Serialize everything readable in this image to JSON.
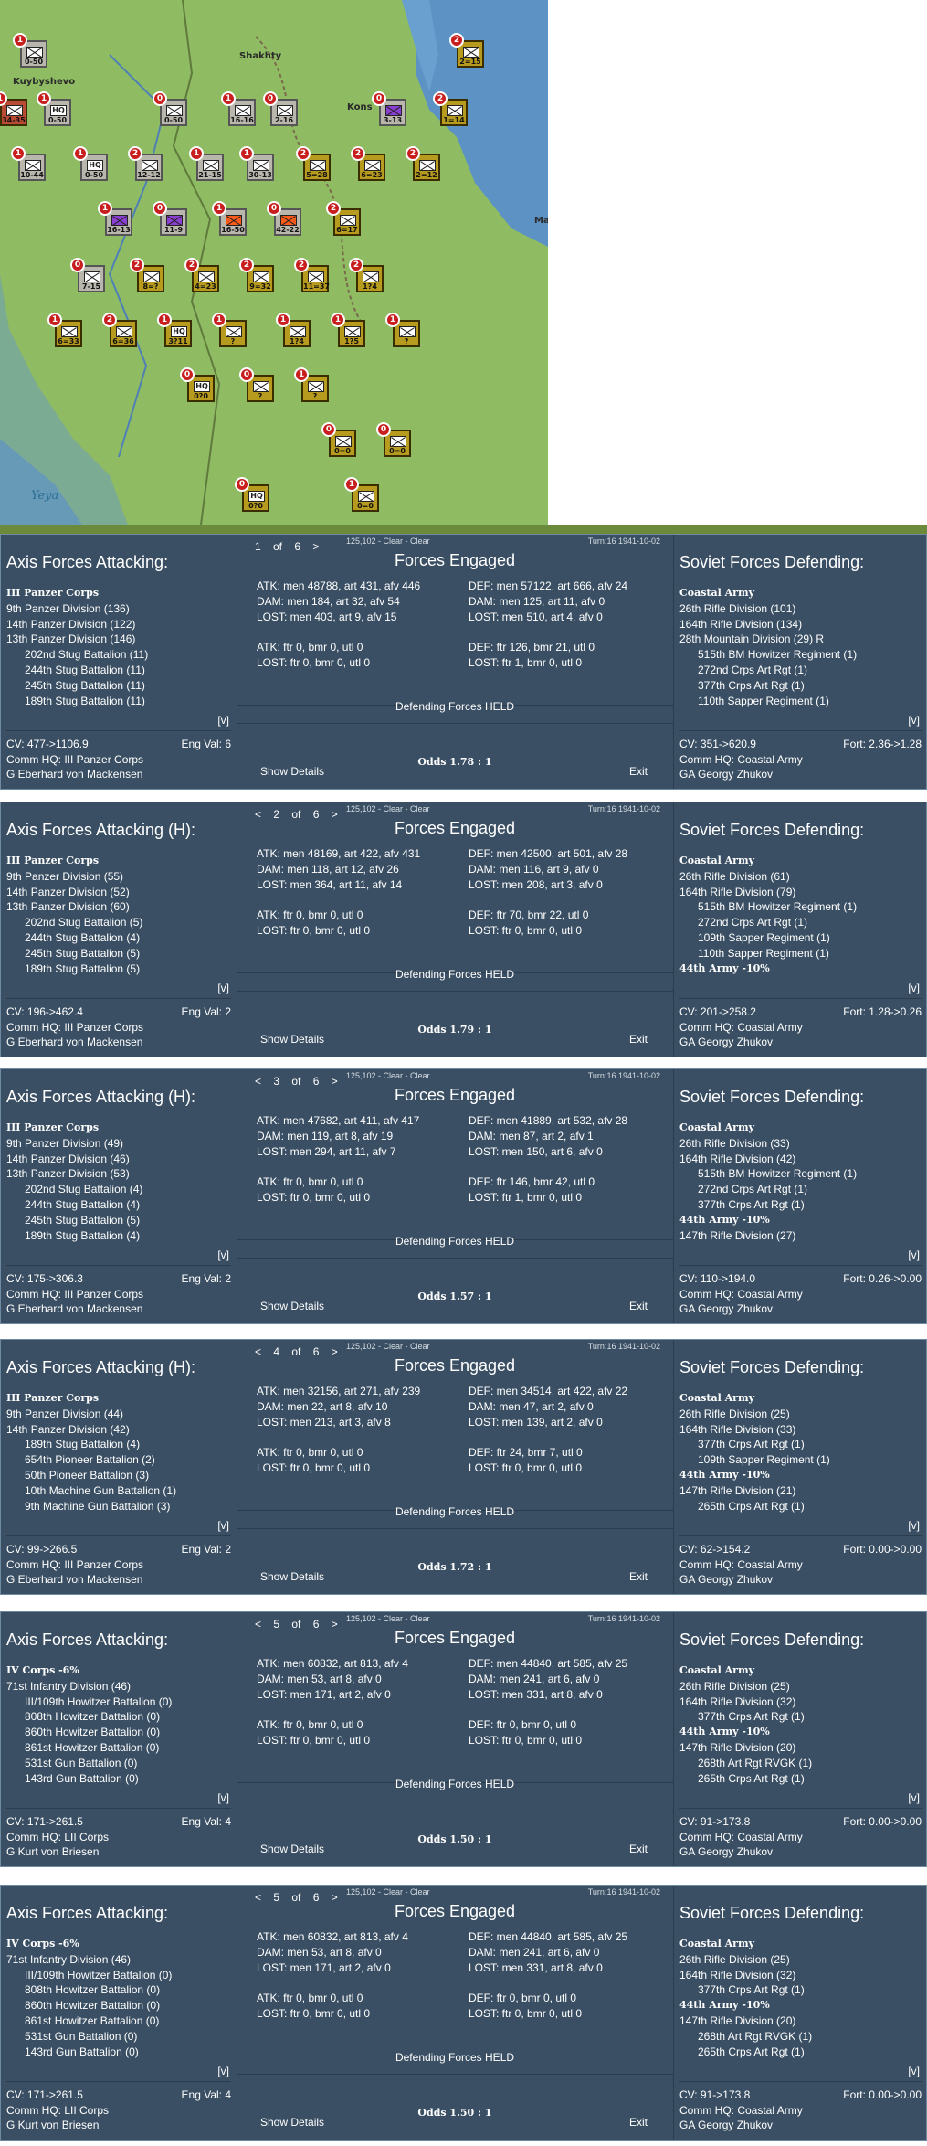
{
  "map": {
    "towns": [
      "Shakhty",
      "Kuybyshevo",
      "Kons",
      "Ma"
    ],
    "sea_label": "Yeya",
    "units": [
      {
        "label": "0-50",
        "style": "grey",
        "sym": "x"
      },
      {
        "label": "34-35",
        "style": "red",
        "sym": "x"
      },
      {
        "label": "0-50",
        "style": "grey",
        "sym": "hq"
      },
      {
        "label": "0-50",
        "style": "grey",
        "sym": "x"
      },
      {
        "label": "16-16",
        "style": "grey",
        "sym": "x"
      },
      {
        "label": "2-16",
        "style": "grey",
        "sym": "x"
      },
      {
        "label": "3-13",
        "style": "grey",
        "sym": "purple"
      },
      {
        "label": "1=14",
        "style": "gold",
        "sym": "x"
      },
      {
        "label": "2=15",
        "style": "gold",
        "sym": "x"
      },
      {
        "label": "10-44",
        "style": "grey",
        "sym": "x"
      },
      {
        "label": "0-50",
        "style": "grey",
        "sym": "hq"
      },
      {
        "label": "12-12",
        "style": "grey",
        "sym": "x"
      },
      {
        "label": "21-15",
        "style": "grey",
        "sym": "x"
      },
      {
        "label": "30-13",
        "style": "grey",
        "sym": "x"
      },
      {
        "label": "5=28",
        "style": "gold",
        "sym": "x"
      },
      {
        "label": "6=23",
        "style": "gold",
        "sym": "x"
      },
      {
        "label": "2=12",
        "style": "gold",
        "sym": "x"
      },
      {
        "label": "16-13",
        "style": "grey",
        "sym": "purple"
      },
      {
        "label": "11-9",
        "style": "grey",
        "sym": "purple"
      },
      {
        "label": "16-50",
        "style": "grey",
        "sym": "orange"
      },
      {
        "label": "42-22",
        "style": "grey",
        "sym": "orange"
      },
      {
        "label": "6=17",
        "style": "gold",
        "sym": "x"
      },
      {
        "label": "7-15",
        "style": "grey",
        "sym": "x"
      },
      {
        "label": "8=?",
        "style": "gold",
        "sym": "x"
      },
      {
        "label": "4=23",
        "style": "gold",
        "sym": "x"
      },
      {
        "label": "9=32",
        "style": "gold",
        "sym": "x"
      },
      {
        "label": "11=37",
        "style": "gold",
        "sym": "x"
      },
      {
        "label": "1?4",
        "style": "gold",
        "sym": "x"
      },
      {
        "label": "6=33",
        "style": "gold",
        "sym": "x"
      },
      {
        "label": "6=36",
        "style": "gold",
        "sym": "x"
      },
      {
        "label": "3?11",
        "style": "gold",
        "sym": "hq"
      },
      {
        "label": "?",
        "style": "gold",
        "sym": "x"
      },
      {
        "label": "1?4",
        "style": "gold",
        "sym": "x"
      },
      {
        "label": "1?5",
        "style": "gold",
        "sym": "x"
      },
      {
        "label": "?",
        "style": "gold",
        "sym": "x"
      },
      {
        "label": "0?0",
        "style": "gold",
        "sym": "hq"
      },
      {
        "label": "?",
        "style": "gold",
        "sym": "x"
      },
      {
        "label": "?",
        "style": "gold",
        "sym": "x"
      },
      {
        "label": "0=0",
        "style": "gold",
        "sym": "x"
      },
      {
        "label": "0=0",
        "style": "gold",
        "sym": "x"
      },
      {
        "label": "0?0",
        "style": "gold",
        "sym": "hq"
      },
      {
        "label": "0=0",
        "style": "gold",
        "sym": "x"
      }
    ]
  },
  "panels": [
    {
      "nav": "1 of 6 >",
      "meta": "125,102 - Clear - Clear",
      "turn": "Turn:16  1941-10-02",
      "title": "Forces Engaged",
      "attack_header": "Axis Forces Attacking:",
      "attack_lines": [
        {
          "t": "III Panzer Corps",
          "c": "corps"
        },
        {
          "t": "9th Panzer Division (136)",
          "c": ""
        },
        {
          "t": "14th Panzer Division (122)",
          "c": ""
        },
        {
          "t": "13th Panzer Division (146)",
          "c": ""
        },
        {
          "t": "202nd Stug Battalion (11)",
          "c": "ind"
        },
        {
          "t": "244th Stug Battalion (11)",
          "c": "ind"
        },
        {
          "t": "245th Stug Battalion (11)",
          "c": "ind"
        },
        {
          "t": "189th Stug Battalion (11)",
          "c": "ind"
        }
      ],
      "atk": [
        "ATK: men 48788, art 431, afv 446",
        "DAM: men 184, art 32, afv 54",
        "LOST: men 403, art 9, afv 15",
        "",
        "ATK: ftr 0, bmr 0, utl 0",
        "LOST: ftr 0, bmr 0, utl 0"
      ],
      "def": [
        "DEF: men 57122, art 666, afv 24",
        "DAM: men 125, art 11, afv 0",
        "LOST: men 510, art 4, afv 0",
        "",
        "DEF: ftr 126, bmr 21, utl 0",
        "LOST: ftr 1, bmr 0, utl 0"
      ],
      "result": "Defending Forces HELD",
      "odds": "Odds 1.78 : 1",
      "show_details": "Show Details",
      "exit": "Exit",
      "atk_cv": "CV: 477->1106.9",
      "atk_eng": "Eng Val: 6",
      "atk_hq": "Comm HQ: III Panzer Corps",
      "atk_cmdr": "G Eberhard von Mackensen",
      "defend_header": "Soviet Forces Defending:",
      "defend_lines": [
        {
          "t": "Coastal Army",
          "c": "corps"
        },
        {
          "t": "26th Rifle Division (101)",
          "c": ""
        },
        {
          "t": "164th Rifle Division (134)",
          "c": ""
        },
        {
          "t": "28th Mountain Division (29) R",
          "c": ""
        },
        {
          "t": "515th BM Howitzer Regiment (1)",
          "c": "ind"
        },
        {
          "t": "272nd Crps Art Rgt (1)",
          "c": "ind"
        },
        {
          "t": "377th Crps Art Rgt (1)",
          "c": "ind"
        },
        {
          "t": "110th Sapper Regiment (1)",
          "c": "ind"
        }
      ],
      "def_cv": "CV: 351->620.9",
      "def_fort": "Fort: 2.36->1.28",
      "def_hq": "Comm HQ: Coastal Army",
      "def_cmdr": "GA Georgy Zhukov",
      "vlink": "[v]"
    },
    {
      "nav": "< 2 of 6 >",
      "meta": "125,102 - Clear - Clear",
      "turn": "Turn:16  1941-10-02",
      "title": "Forces Engaged",
      "attack_header": "Axis Forces Attacking (H):",
      "attack_lines": [
        {
          "t": "III Panzer Corps",
          "c": "corps"
        },
        {
          "t": "9th Panzer Division (55)",
          "c": ""
        },
        {
          "t": "14th Panzer Division (52)",
          "c": ""
        },
        {
          "t": "13th Panzer Division (60)",
          "c": ""
        },
        {
          "t": "202nd Stug Battalion (5)",
          "c": "ind"
        },
        {
          "t": "244th Stug Battalion (4)",
          "c": "ind"
        },
        {
          "t": "245th Stug Battalion (5)",
          "c": "ind"
        },
        {
          "t": "189th Stug Battalion (5)",
          "c": "ind"
        }
      ],
      "atk": [
        "ATK: men 48169, art 422, afv 431",
        "DAM: men 118, art 12, afv 26",
        "LOST: men 364, art 11, afv 14",
        "",
        "ATK: ftr 0, bmr 0, utl 0",
        "LOST: ftr 0, bmr 0, utl 0"
      ],
      "def": [
        "DEF: men 42500, art 501, afv 28",
        "DAM: men 116, art 9, afv 0",
        "LOST: men 208, art 3, afv 0",
        "",
        "DEF: ftr 70, bmr 22, utl 0",
        "LOST: ftr 0, bmr 0, utl 0"
      ],
      "result": "Defending Forces HELD",
      "odds": "Odds 1.79 : 1",
      "show_details": "Show Details",
      "exit": "Exit",
      "atk_cv": "CV: 196->462.4",
      "atk_eng": "Eng Val: 2",
      "atk_hq": "Comm HQ: III Panzer Corps",
      "atk_cmdr": "G Eberhard von Mackensen",
      "defend_header": "Soviet Forces Defending:",
      "defend_lines": [
        {
          "t": "Coastal Army",
          "c": "corps"
        },
        {
          "t": "26th Rifle Division (61)",
          "c": ""
        },
        {
          "t": "164th Rifle Division (79)",
          "c": ""
        },
        {
          "t": "515th BM Howitzer Regiment (1)",
          "c": "ind"
        },
        {
          "t": "272nd Crps Art Rgt (1)",
          "c": "ind"
        },
        {
          "t": "109th Sapper Regiment (1)",
          "c": "ind"
        },
        {
          "t": "110th Sapper Regiment (1)",
          "c": "ind"
        },
        {
          "t": "44th Army  -10%",
          "c": "bold"
        }
      ],
      "def_cv": "CV: 201->258.2",
      "def_fort": "Fort: 1.28->0.26",
      "def_hq": "Comm HQ: Coastal Army",
      "def_cmdr": "GA Georgy Zhukov",
      "vlink": "[v]"
    },
    {
      "nav": "< 3 of 6 >",
      "meta": "125,102 - Clear - Clear",
      "turn": "Turn:16  1941-10-02",
      "title": "Forces Engaged",
      "attack_header": "Axis Forces Attacking (H):",
      "attack_lines": [
        {
          "t": "III Panzer Corps",
          "c": "corps"
        },
        {
          "t": "9th Panzer Division (49)",
          "c": ""
        },
        {
          "t": "14th Panzer Division (46)",
          "c": ""
        },
        {
          "t": "13th Panzer Division (53)",
          "c": ""
        },
        {
          "t": "202nd Stug Battalion (4)",
          "c": "ind"
        },
        {
          "t": "244th Stug Battalion (4)",
          "c": "ind"
        },
        {
          "t": "245th Stug Battalion (5)",
          "c": "ind"
        },
        {
          "t": "189th Stug Battalion (4)",
          "c": "ind"
        }
      ],
      "atk": [
        "ATK: men 47682, art 411, afv 417",
        "DAM: men 119, art 8, afv 19",
        "LOST: men 294, art 11, afv 7",
        "",
        "ATK: ftr 0, bmr 0, utl 0",
        "LOST: ftr 0, bmr 0, utl 0"
      ],
      "def": [
        "DEF: men 41889, art 532, afv 28",
        "DAM: men 87, art 2, afv 1",
        "LOST: men 150, art 6, afv 0",
        "",
        "DEF: ftr 146, bmr 42, utl 0",
        "LOST: ftr 1, bmr 0, utl 0"
      ],
      "result": "Defending Forces HELD",
      "odds": "Odds 1.57 : 1",
      "show_details": "Show Details",
      "exit": "Exit",
      "atk_cv": "CV: 175->306.3",
      "atk_eng": "Eng Val: 2",
      "atk_hq": "Comm HQ: III Panzer Corps",
      "atk_cmdr": "G Eberhard von Mackensen",
      "defend_header": "Soviet Forces Defending:",
      "defend_lines": [
        {
          "t": "Coastal Army",
          "c": "corps"
        },
        {
          "t": "26th Rifle Division (33)",
          "c": ""
        },
        {
          "t": "164th Rifle Division (42)",
          "c": ""
        },
        {
          "t": "515th BM Howitzer Regiment (1)",
          "c": "ind"
        },
        {
          "t": "272nd Crps Art Rgt (1)",
          "c": "ind"
        },
        {
          "t": "377th Crps Art Rgt (1)",
          "c": "ind"
        },
        {
          "t": "44th Army  -10%",
          "c": "bold"
        },
        {
          "t": "147th Rifle Division (27)",
          "c": ""
        }
      ],
      "def_cv": "CV: 110->194.0",
      "def_fort": "Fort: 0.26->0.00",
      "def_hq": "Comm HQ: Coastal Army",
      "def_cmdr": "GA Georgy Zhukov",
      "vlink": "[v]"
    },
    {
      "nav": "< 4 of 6 >",
      "meta": "125,102 - Clear - Clear",
      "turn": "Turn:16  1941-10-02",
      "title": "Forces Engaged",
      "attack_header": "Axis Forces Attacking (H):",
      "attack_lines": [
        {
          "t": "III Panzer Corps",
          "c": "corps"
        },
        {
          "t": "9th Panzer Division (44)",
          "c": ""
        },
        {
          "t": "14th Panzer Division (42)",
          "c": ""
        },
        {
          "t": "189th Stug Battalion (4)",
          "c": "ind"
        },
        {
          "t": "654th Pioneer Battalion (2)",
          "c": "ind"
        },
        {
          "t": "50th Pioneer Battalion (3)",
          "c": "ind"
        },
        {
          "t": "10th Machine Gun Battalion (1)",
          "c": "ind"
        },
        {
          "t": "9th Machine Gun Battalion (3)",
          "c": "ind"
        }
      ],
      "atk": [
        "ATK: men 32156, art 271, afv 239",
        "DAM: men 22, art 8, afv 10",
        "LOST: men 213, art 3, afv 8",
        "",
        "ATK: ftr 0, bmr 0, utl 0",
        "LOST: ftr 0, bmr 0, utl 0"
      ],
      "def": [
        "DEF: men 34514, art 422, afv 22",
        "DAM: men 47, art 2, afv 0",
        "LOST: men 139, art 2, afv 0",
        "",
        "DEF: ftr 24, bmr 7, utl 0",
        "LOST: ftr 0, bmr 0, utl 0"
      ],
      "result": "Defending Forces HELD",
      "odds": "Odds 1.72 : 1",
      "show_details": "Show Details",
      "exit": "Exit",
      "atk_cv": "CV: 99->266.5",
      "atk_eng": "Eng Val: 2",
      "atk_hq": "Comm HQ: III Panzer Corps",
      "atk_cmdr": "G Eberhard von Mackensen",
      "defend_header": "Soviet Forces Defending:",
      "defend_lines": [
        {
          "t": "Coastal Army",
          "c": "corps"
        },
        {
          "t": "26th Rifle Division (25)",
          "c": ""
        },
        {
          "t": "164th Rifle Division (33)",
          "c": ""
        },
        {
          "t": "377th Crps Art Rgt (1)",
          "c": "ind"
        },
        {
          "t": "109th Sapper Regiment (1)",
          "c": "ind"
        },
        {
          "t": "44th Army  -10%",
          "c": "bold"
        },
        {
          "t": "147th Rifle Division (21)",
          "c": ""
        },
        {
          "t": "265th Crps Art Rgt (1)",
          "c": "ind"
        }
      ],
      "def_cv": "CV: 62->154.2",
      "def_fort": "Fort: 0.00->0.00",
      "def_hq": "Comm HQ: Coastal Army",
      "def_cmdr": "GA Georgy Zhukov",
      "vlink": "[v]"
    },
    {
      "nav": "< 5 of 6 >",
      "meta": "125,102 - Clear - Clear",
      "turn": "Turn:16  1941-10-02",
      "title": "Forces Engaged",
      "attack_header": "Axis Forces Attacking:",
      "attack_lines": [
        {
          "t": "IV Corps  -6%",
          "c": "corps"
        },
        {
          "t": "71st Infantry Division (46)",
          "c": ""
        },
        {
          "t": "III/109th Howitzer Battalion (0)",
          "c": "ind"
        },
        {
          "t": "808th Howitzer Battalion (0)",
          "c": "ind"
        },
        {
          "t": "860th Howitzer Battalion (0)",
          "c": "ind"
        },
        {
          "t": "861st Howitzer Battalion (0)",
          "c": "ind"
        },
        {
          "t": "531st Gun Battalion (0)",
          "c": "ind"
        },
        {
          "t": "143rd Gun Battalion (0)",
          "c": "ind"
        }
      ],
      "atk": [
        "ATK: men 60832, art 813, afv 4",
        "DAM: men 53, art 8, afv 0",
        "LOST: men 171, art 2, afv 0",
        "",
        "ATK: ftr 0, bmr 0, utl 0",
        "LOST: ftr 0, bmr 0, utl 0"
      ],
      "def": [
        "DEF: men 44840, art 585, afv 25",
        "DAM: men 241, art 6, afv 0",
        "LOST: men 331, art 8, afv 0",
        "",
        "DEF: ftr 0, bmr 0, utl 0",
        "LOST: ftr 0, bmr 0, utl 0"
      ],
      "result": "Defending Forces HELD",
      "odds": "Odds 1.50 : 1",
      "show_details": "Show Details",
      "exit": "Exit",
      "atk_cv": "CV: 171->261.5",
      "atk_eng": "Eng Val: 4",
      "atk_hq": "Comm HQ: LII Corps",
      "atk_cmdr": "G Kurt von Briesen",
      "defend_header": "Soviet Forces Defending:",
      "defend_lines": [
        {
          "t": "Coastal Army",
          "c": "corps"
        },
        {
          "t": "26th Rifle Division (25)",
          "c": ""
        },
        {
          "t": "164th Rifle Division (32)",
          "c": ""
        },
        {
          "t": "377th Crps Art Rgt (1)",
          "c": "ind"
        },
        {
          "t": "44th Army  -10%",
          "c": "bold"
        },
        {
          "t": "147th Rifle Division (20)",
          "c": ""
        },
        {
          "t": "268th Art Rgt RVGK (1)",
          "c": "ind"
        },
        {
          "t": "265th Crps Art Rgt (1)",
          "c": "ind"
        }
      ],
      "def_cv": "CV: 91->173.8",
      "def_fort": "Fort: 0.00->0.00",
      "def_hq": "Comm HQ: Coastal Army",
      "def_cmdr": "GA Georgy Zhukov",
      "vlink": "[v]"
    },
    {
      "nav": "< 5 of 6 >",
      "meta": "125,102 - Clear - Clear",
      "turn": "Turn:16  1941-10-02",
      "title": "Forces Engaged",
      "attack_header": "Axis Forces Attacking:",
      "attack_lines": [
        {
          "t": "IV Corps  -6%",
          "c": "corps"
        },
        {
          "t": "71st Infantry Division (46)",
          "c": ""
        },
        {
          "t": "III/109th Howitzer Battalion (0)",
          "c": "ind"
        },
        {
          "t": "808th Howitzer Battalion (0)",
          "c": "ind"
        },
        {
          "t": "860th Howitzer Battalion (0)",
          "c": "ind"
        },
        {
          "t": "861st Howitzer Battalion (0)",
          "c": "ind"
        },
        {
          "t": "531st Gun Battalion (0)",
          "c": "ind"
        },
        {
          "t": "143rd Gun Battalion (0)",
          "c": "ind"
        }
      ],
      "atk": [
        "ATK: men 60832, art 813, afv 4",
        "DAM: men 53, art 8, afv 0",
        "LOST: men 171, art 2, afv 0",
        "",
        "ATK: ftr 0, bmr 0, utl 0",
        "LOST: ftr 0, bmr 0, utl 0"
      ],
      "def": [
        "DEF: men 44840, art 585, afv 25",
        "DAM: men 241, art 6, afv 0",
        "LOST: men 331, art 8, afv 0",
        "",
        "DEF: ftr 0, bmr 0, utl 0",
        "LOST: ftr 0, bmr 0, utl 0"
      ],
      "result": "Defending Forces HELD",
      "odds": "Odds 1.50 : 1",
      "show_details": "Show Details",
      "exit": "Exit",
      "atk_cv": "CV: 171->261.5",
      "atk_eng": "Eng Val: 4",
      "atk_hq": "Comm HQ: LII Corps",
      "atk_cmdr": "G Kurt von Briesen",
      "defend_header": "Soviet Forces Defending:",
      "defend_lines": [
        {
          "t": "Coastal Army",
          "c": "corps"
        },
        {
          "t": "26th Rifle Division (25)",
          "c": ""
        },
        {
          "t": "164th Rifle Division (32)",
          "c": ""
        },
        {
          "t": "377th Crps Art Rgt (1)",
          "c": "ind"
        },
        {
          "t": "44th Army  -10%",
          "c": "bold"
        },
        {
          "t": "147th Rifle Division (20)",
          "c": ""
        },
        {
          "t": "268th Art Rgt RVGK (1)",
          "c": "ind"
        },
        {
          "t": "265th Crps Art Rgt (1)",
          "c": "ind"
        }
      ],
      "def_cv": "CV: 91->173.8",
      "def_fort": "Fort: 0.00->0.00",
      "def_hq": "Comm HQ: Coastal Army",
      "def_cmdr": "GA Georgy Zhukov",
      "vlink": "[v]"
    }
  ]
}
